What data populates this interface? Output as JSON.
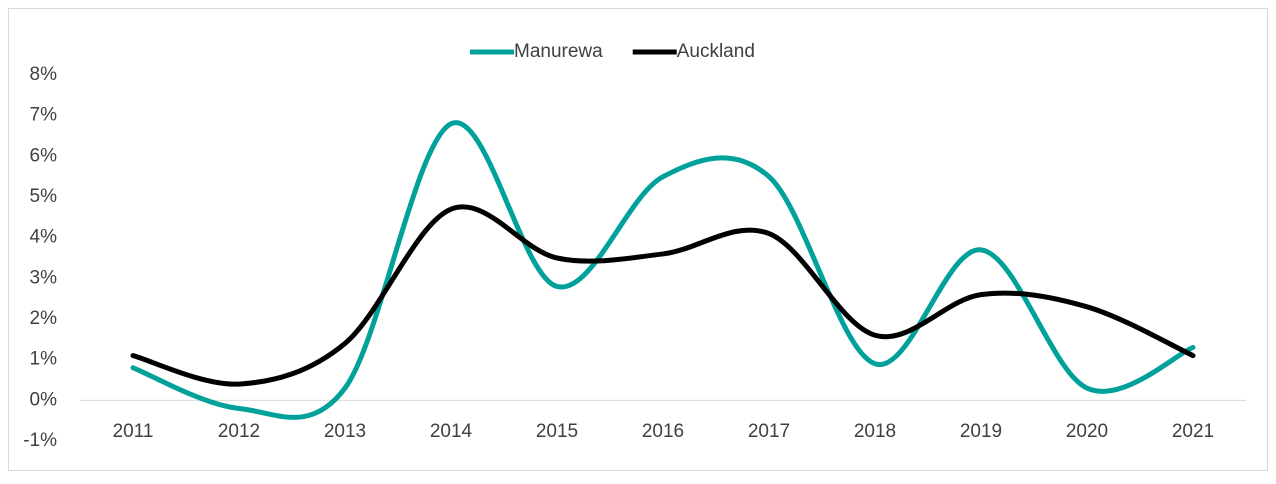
{
  "chart_data": {
    "type": "line",
    "categories": [
      "2011",
      "2012",
      "2013",
      "2014",
      "2015",
      "2016",
      "2017",
      "2018",
      "2019",
      "2020",
      "2021"
    ],
    "series": [
      {
        "name": "Manurewa",
        "color": "#00a19a",
        "values": [
          0.8,
          -0.2,
          0.3,
          6.8,
          2.8,
          5.5,
          5.5,
          0.9,
          3.7,
          0.3,
          1.3
        ]
      },
      {
        "name": "Auckland",
        "color": "#000000",
        "values": [
          1.1,
          0.4,
          1.4,
          4.7,
          3.5,
          3.6,
          4.1,
          1.6,
          2.6,
          2.3,
          1.1
        ]
      }
    ],
    "ylim": [
      -1,
      8
    ],
    "yticks": [
      {
        "value": -1,
        "label": "-1%"
      },
      {
        "value": 0,
        "label": "0%"
      },
      {
        "value": 1,
        "label": "1%"
      },
      {
        "value": 2,
        "label": "2%"
      },
      {
        "value": 3,
        "label": "3%"
      },
      {
        "value": 4,
        "label": "4%"
      },
      {
        "value": 5,
        "label": "5%"
      },
      {
        "value": 6,
        "label": "6%"
      },
      {
        "value": 7,
        "label": "7%"
      },
      {
        "value": 8,
        "label": "8%"
      }
    ],
    "smooth": true,
    "legend": "top"
  }
}
